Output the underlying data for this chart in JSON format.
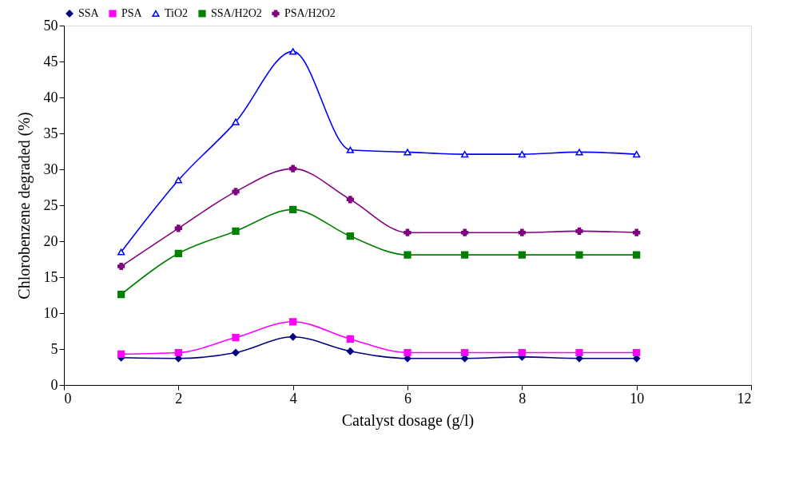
{
  "chart_data": {
    "type": "line",
    "xlabel": "Catalyst dosage (g/l)",
    "ylabel": "Chlorobenzene degraded (%)",
    "x": [
      1,
      2,
      3,
      4,
      5,
      6,
      7,
      8,
      9,
      10
    ],
    "xlim": [
      0,
      12
    ],
    "xticks": [
      0,
      2,
      4,
      6,
      8,
      10,
      12
    ],
    "ylim": [
      0,
      50
    ],
    "yticks": [
      0,
      5,
      10,
      15,
      20,
      25,
      30,
      35,
      40,
      45,
      50
    ],
    "grid": false,
    "legend": "top",
    "line_style": "solid",
    "series": [
      {
        "name": "SSA",
        "color": "#000080",
        "marker": "diamond",
        "values": [
          3.8,
          3.7,
          4.5,
          6.7,
          4.7,
          3.7,
          3.7,
          3.9,
          3.7,
          3.7
        ]
      },
      {
        "name": "PSA",
        "color": "#ff00ff",
        "marker": "square",
        "values": [
          4.3,
          4.5,
          6.6,
          8.8,
          6.4,
          4.5,
          4.5,
          4.5,
          4.5,
          4.5
        ]
      },
      {
        "name": "TiO2",
        "color": "#0000ff",
        "marker": "triangle",
        "values": [
          18.5,
          28.5,
          36.6,
          46.4,
          32.7,
          32.4,
          32.1,
          32.1,
          32.4,
          32.1
        ]
      },
      {
        "name": "SSA/H2O2",
        "color": "#008000",
        "marker": "square",
        "values": [
          12.6,
          18.3,
          21.4,
          24.4,
          20.7,
          18.1,
          18.1,
          18.1,
          18.1,
          18.1
        ]
      },
      {
        "name": "PSA/H2O2",
        "color": "#800080",
        "marker": "cross",
        "values": [
          16.5,
          21.8,
          26.9,
          30.1,
          25.8,
          21.2,
          21.2,
          21.2,
          21.4,
          21.2
        ]
      }
    ]
  }
}
